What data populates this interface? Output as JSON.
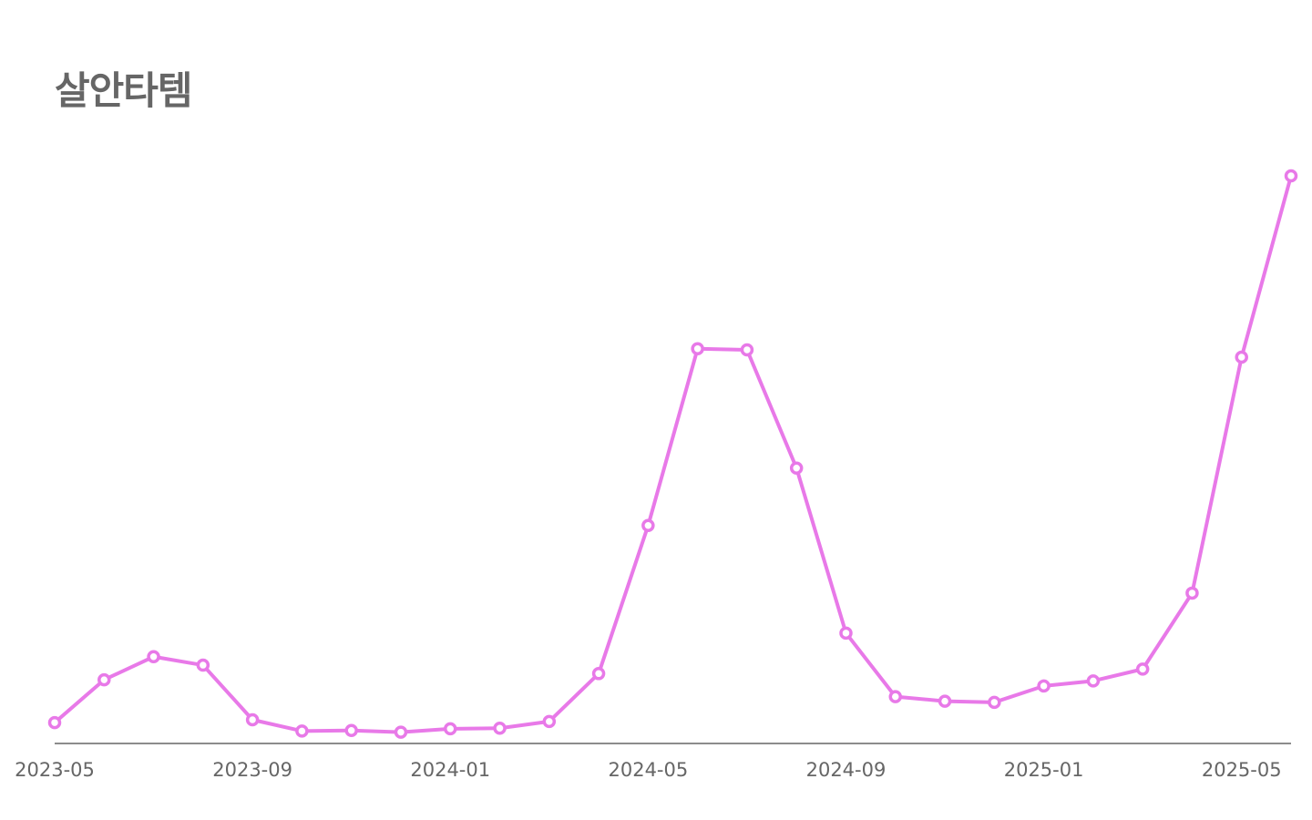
{
  "chart_data": {
    "type": "line",
    "title": "살안타템",
    "xlabel": "",
    "ylabel": "",
    "x": [
      "2023-05",
      "2023-06",
      "2023-07",
      "2023-08",
      "2023-09",
      "2023-10",
      "2023-11",
      "2023-12",
      "2024-01",
      "2024-02",
      "2024-03",
      "2024-04",
      "2024-05",
      "2024-06",
      "2024-07",
      "2024-08",
      "2024-09",
      "2024-10",
      "2024-11",
      "2024-12",
      "2025-01",
      "2025-02",
      "2025-03",
      "2025-04",
      "2025-05",
      "2025-06"
    ],
    "x_tick_labels": [
      "2023-05",
      "2023-09",
      "2024-01",
      "2024-05",
      "2024-09",
      "2025-01",
      "2025-05"
    ],
    "series": [
      {
        "values": [
          2.9,
          10.5,
          14.6,
          13.1,
          3.4,
          1.4,
          1.5,
          1.2,
          1.8,
          1.9,
          3.1,
          11.6,
          37.9,
          69.3,
          69.1,
          48.1,
          18.8,
          7.5,
          6.7,
          6.5,
          9.4,
          10.3,
          12.4,
          25.9,
          67.8,
          100
        ],
        "color": "#e879e8"
      }
    ],
    "ylim": [
      0,
      100
    ],
    "grid": false,
    "legend": "none",
    "marker": "hollow-circle",
    "axis_color": "#666666"
  }
}
